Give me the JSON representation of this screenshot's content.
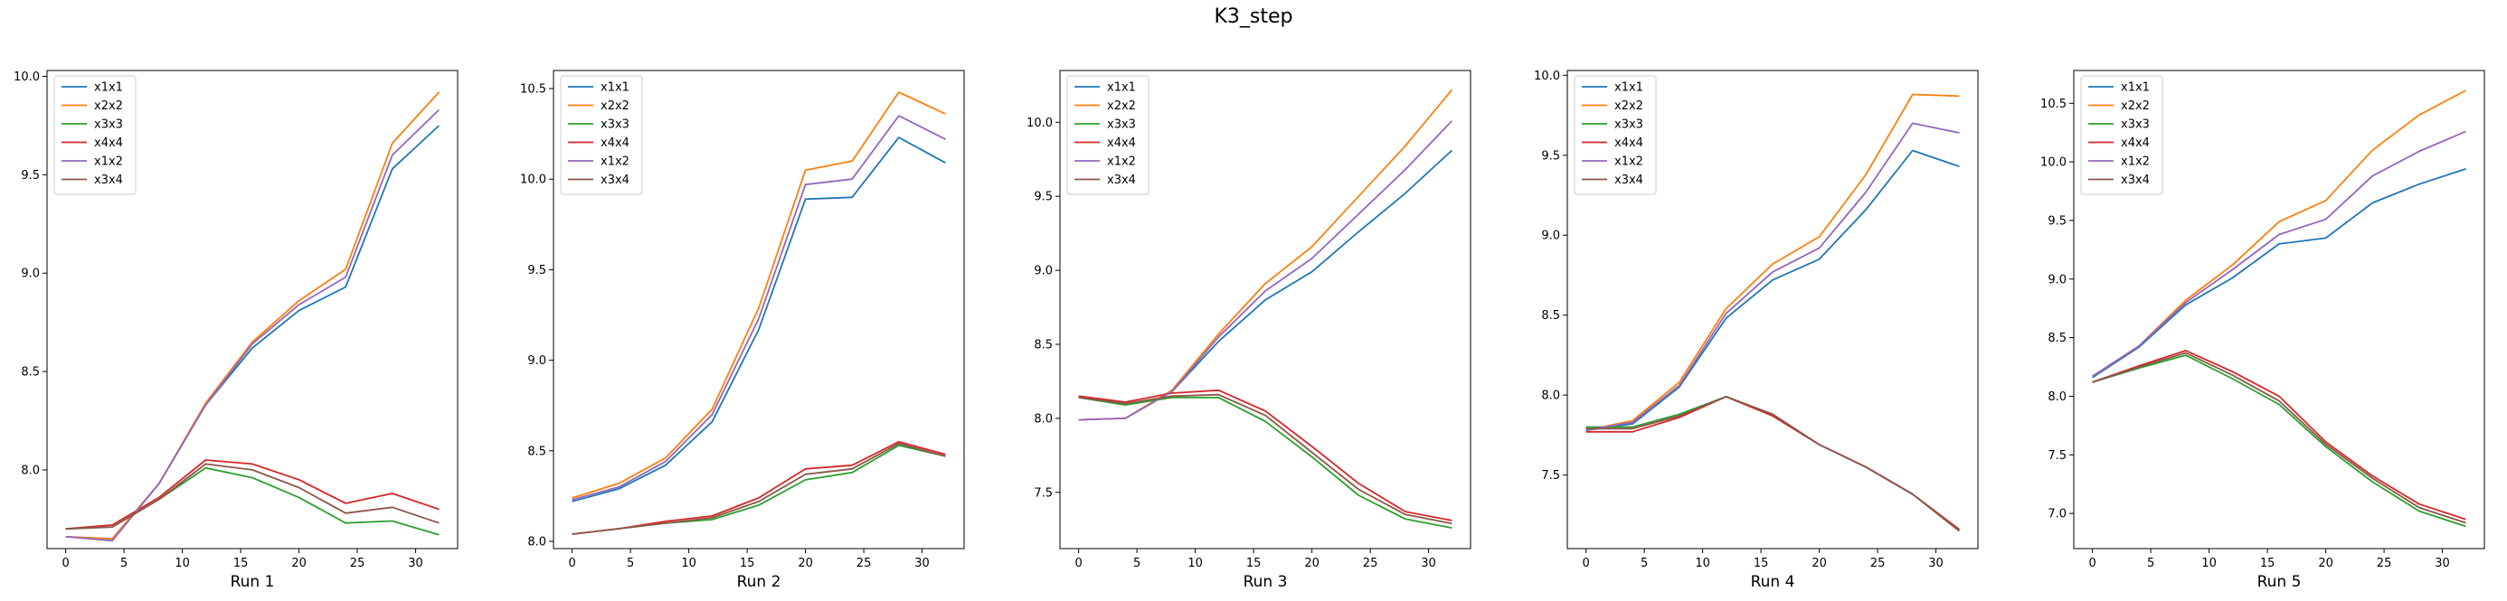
{
  "figure": {
    "title": "K3_step"
  },
  "colors": {
    "x1x1": "#1f77b4",
    "x2x2": "#ff7f0e",
    "x3x3": "#2ca02c",
    "x4x4": "#d62728",
    "x1x2": "#9467bd",
    "x3x4": "#8c564b"
  },
  "chart_data": [
    {
      "type": "line",
      "title": "",
      "xlabel": "Run 1",
      "ylabel": "",
      "x": [
        0,
        4,
        8,
        12,
        16,
        20,
        24,
        28,
        32
      ],
      "xlim": [
        -1.6,
        33.6
      ],
      "ylim": [
        7.6,
        10.03
      ],
      "xticks": [
        0,
        5,
        10,
        15,
        20,
        25,
        30
      ],
      "yticks": [
        8.0,
        8.5,
        9.0,
        9.5,
        10.0
      ],
      "legend": "upper-left",
      "grid": false,
      "series": [
        {
          "name": "x1x1",
          "values": [
            7.66,
            7.65,
            7.93,
            8.33,
            8.62,
            8.81,
            8.93,
            9.53,
            9.75
          ]
        },
        {
          "name": "x2x2",
          "values": [
            7.66,
            7.65,
            7.93,
            8.34,
            8.65,
            8.86,
            9.02,
            9.66,
            9.92
          ]
        },
        {
          "name": "x3x3",
          "values": [
            7.7,
            7.71,
            7.85,
            8.01,
            7.96,
            7.86,
            7.73,
            7.74,
            7.67
          ]
        },
        {
          "name": "x4x4",
          "values": [
            7.7,
            7.72,
            7.86,
            8.05,
            8.03,
            7.95,
            7.83,
            7.88,
            7.8
          ]
        },
        {
          "name": "x1x2",
          "values": [
            7.66,
            7.64,
            7.93,
            8.33,
            8.64,
            8.84,
            8.98,
            9.6,
            9.83
          ]
        },
        {
          "name": "x3x4",
          "values": [
            7.7,
            7.71,
            7.85,
            8.03,
            8.0,
            7.91,
            7.78,
            7.81,
            7.73
          ]
        }
      ]
    },
    {
      "type": "line",
      "title": "",
      "xlabel": "Run 2",
      "ylabel": "",
      "x": [
        0,
        4,
        8,
        12,
        16,
        20,
        24,
        28,
        32
      ],
      "xlim": [
        -1.6,
        33.6
      ],
      "ylim": [
        7.96,
        10.6
      ],
      "xticks": [
        0,
        5,
        10,
        15,
        20,
        25,
        30
      ],
      "yticks": [
        8.0,
        8.5,
        9.0,
        9.5,
        10.0,
        10.5
      ],
      "legend": "upper-left",
      "grid": false,
      "series": [
        {
          "name": "x1x1",
          "values": [
            8.22,
            8.29,
            8.42,
            8.66,
            9.17,
            9.89,
            9.9,
            10.23,
            10.09
          ]
        },
        {
          "name": "x2x2",
          "values": [
            8.24,
            8.32,
            8.46,
            8.73,
            9.29,
            10.05,
            10.1,
            10.48,
            10.36
          ]
        },
        {
          "name": "x3x3",
          "values": [
            8.04,
            8.07,
            8.1,
            8.12,
            8.2,
            8.34,
            8.38,
            8.53,
            8.47
          ]
        },
        {
          "name": "x4x4",
          "values": [
            8.04,
            8.07,
            8.11,
            8.14,
            8.24,
            8.4,
            8.42,
            8.55,
            8.48
          ]
        },
        {
          "name": "x1x2",
          "values": [
            8.23,
            8.3,
            8.44,
            8.7,
            9.23,
            9.97,
            10.0,
            10.35,
            10.22
          ]
        },
        {
          "name": "x3x4",
          "values": [
            8.04,
            8.07,
            8.1,
            8.13,
            8.22,
            8.37,
            8.4,
            8.54,
            8.47
          ]
        }
      ]
    },
    {
      "type": "line",
      "title": "",
      "xlabel": "Run 3",
      "ylabel": "",
      "x": [
        0,
        4,
        8,
        12,
        16,
        20,
        24,
        28,
        32
      ],
      "xlim": [
        -1.6,
        33.6
      ],
      "ylim": [
        7.12,
        10.35
      ],
      "xticks": [
        0,
        5,
        10,
        15,
        20,
        25,
        30
      ],
      "yticks": [
        7.5,
        8.0,
        8.5,
        9.0,
        9.5,
        10.0
      ],
      "legend": "upper-left",
      "grid": false,
      "series": [
        {
          "name": "x1x1",
          "values": [
            7.99,
            8.0,
            8.18,
            8.52,
            8.8,
            8.99,
            9.26,
            9.52,
            9.81
          ]
        },
        {
          "name": "x2x2",
          "values": [
            7.99,
            8.0,
            8.19,
            8.57,
            8.91,
            9.16,
            9.5,
            9.84,
            10.22
          ]
        },
        {
          "name": "x3x3",
          "values": [
            8.14,
            8.09,
            8.14,
            8.14,
            7.98,
            7.74,
            7.48,
            7.32,
            7.26
          ]
        },
        {
          "name": "x4x4",
          "values": [
            8.15,
            8.11,
            8.17,
            8.19,
            8.05,
            7.81,
            7.56,
            7.37,
            7.31
          ]
        },
        {
          "name": "x1x2",
          "values": [
            7.99,
            8.0,
            8.18,
            8.55,
            8.86,
            9.08,
            9.38,
            9.68,
            10.01
          ]
        },
        {
          "name": "x3x4",
          "values": [
            8.14,
            8.1,
            8.15,
            8.16,
            8.02,
            7.77,
            7.52,
            7.35,
            7.29
          ]
        }
      ]
    },
    {
      "type": "line",
      "title": "",
      "xlabel": "Run 4",
      "ylabel": "",
      "x": [
        0,
        4,
        8,
        12,
        16,
        20,
        24,
        28,
        32
      ],
      "xlim": [
        -1.6,
        33.6
      ],
      "ylim": [
        7.04,
        10.03
      ],
      "xticks": [
        0,
        5,
        10,
        15,
        20,
        25,
        30
      ],
      "yticks": [
        7.5,
        8.0,
        8.5,
        9.0,
        9.5,
        10.0
      ],
      "legend": "upper-left",
      "grid": false,
      "series": [
        {
          "name": "x1x1",
          "values": [
            7.78,
            7.82,
            8.05,
            8.48,
            8.72,
            8.85,
            9.16,
            9.53,
            9.43
          ]
        },
        {
          "name": "x2x2",
          "values": [
            7.78,
            7.84,
            8.08,
            8.54,
            8.82,
            8.99,
            9.38,
            9.88,
            9.87
          ]
        },
        {
          "name": "x3x3",
          "values": [
            7.8,
            7.8,
            7.88,
            7.99,
            7.88,
            7.69,
            7.55,
            7.38,
            7.15
          ]
        },
        {
          "name": "x4x4",
          "values": [
            7.77,
            7.77,
            7.86,
            7.99,
            7.87,
            7.69,
            7.55,
            7.38,
            7.16
          ]
        },
        {
          "name": "x1x2",
          "values": [
            7.78,
            7.83,
            8.06,
            8.51,
            8.77,
            8.92,
            9.27,
            9.7,
            9.64
          ]
        },
        {
          "name": "x3x4",
          "values": [
            7.79,
            7.79,
            7.87,
            7.99,
            7.88,
            7.69,
            7.55,
            7.38,
            7.15
          ]
        }
      ]
    },
    {
      "type": "line",
      "title": "",
      "xlabel": "Run 5",
      "ylabel": "",
      "x": [
        0,
        4,
        8,
        12,
        16,
        20,
        24,
        28,
        32
      ],
      "xlim": [
        -1.6,
        33.6
      ],
      "ylim": [
        6.7,
        10.78
      ],
      "xticks": [
        0,
        5,
        10,
        15,
        20,
        25,
        30
      ],
      "yticks": [
        7.0,
        7.5,
        8.0,
        8.5,
        9.0,
        9.5,
        10.0,
        10.5
      ],
      "legend": "upper-left",
      "grid": false,
      "series": [
        {
          "name": "x1x1",
          "values": [
            8.16,
            8.42,
            8.78,
            9.01,
            9.3,
            9.35,
            9.65,
            9.81,
            9.94
          ]
        },
        {
          "name": "x2x2",
          "values": [
            8.17,
            8.43,
            8.82,
            9.12,
            9.49,
            9.67,
            10.1,
            10.4,
            10.61
          ]
        },
        {
          "name": "x3x3",
          "values": [
            8.12,
            8.24,
            8.35,
            8.15,
            7.93,
            7.57,
            7.27,
            7.02,
            6.89
          ]
        },
        {
          "name": "x4x4",
          "values": [
            8.12,
            8.26,
            8.39,
            8.21,
            8.0,
            7.61,
            7.32,
            7.08,
            6.95
          ]
        },
        {
          "name": "x1x2",
          "values": [
            8.17,
            8.43,
            8.8,
            9.08,
            9.38,
            9.51,
            9.88,
            10.09,
            10.26
          ]
        },
        {
          "name": "x3x4",
          "values": [
            8.12,
            8.25,
            8.37,
            8.18,
            7.96,
            7.59,
            7.3,
            7.05,
            6.92
          ]
        }
      ]
    }
  ]
}
